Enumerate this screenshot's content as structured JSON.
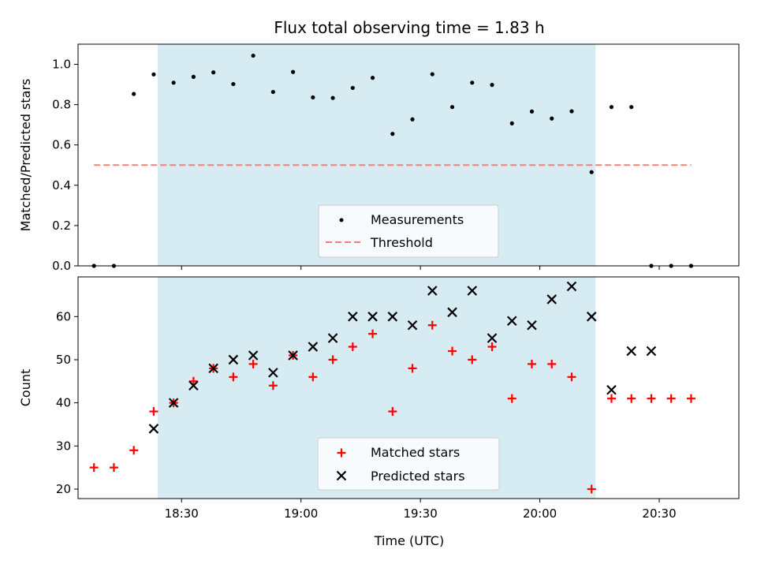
{
  "title": "Flux total observing time = 1.83 h",
  "colors": {
    "shade": "#add8e6",
    "threshold": "#f08080",
    "measurement": "#000000",
    "matched": "#ff0000",
    "predicted": "#000000"
  },
  "chart_data": [
    {
      "type": "scatter",
      "name": "ratio-panel",
      "ylabel": "Matched/Predicted stars",
      "xlabel": "",
      "ylim": [
        0.0,
        1.1
      ],
      "yticks": [
        0.0,
        0.2,
        0.4,
        0.6,
        0.8,
        1.0
      ],
      "ytick_labels": [
        "0.0",
        "0.2",
        "0.4",
        "0.6",
        "0.8",
        "1.0"
      ],
      "xlim_min": [
        1084,
        1250
      ],
      "shaded_span_min": [
        1104,
        1214
      ],
      "threshold": {
        "value": 0.5,
        "x_min": [
          1088,
          1238
        ]
      },
      "series": [
        {
          "name": "Measurements",
          "x_min": [
            1088,
            1093,
            1098,
            1103,
            1108,
            1113,
            1118,
            1123,
            1128,
            1133,
            1138,
            1143,
            1148,
            1153,
            1158,
            1163,
            1168,
            1173,
            1178,
            1183,
            1188,
            1193,
            1198,
            1203,
            1208,
            1213,
            1218,
            1223,
            1228,
            1233,
            1238
          ],
          "values": [
            0.0,
            0.0,
            0.853,
            0.95,
            0.909,
            0.938,
            0.96,
            0.902,
            1.043,
            0.863,
            0.962,
            0.836,
            0.833,
            0.883,
            0.933,
            0.655,
            0.727,
            0.951,
            0.788,
            0.909,
            0.898,
            0.707,
            0.766,
            0.731,
            0.767,
            0.465,
            0.788,
            0.788,
            0.0,
            0.0,
            0.0
          ]
        }
      ],
      "legend": {
        "entries": [
          "Measurements",
          "Threshold"
        ],
        "placement": "lower-center"
      }
    },
    {
      "type": "scatter",
      "name": "count-panel",
      "ylabel": "Count",
      "xlabel": "Time (UTC)",
      "ylim": [
        17.8,
        69.2
      ],
      "yticks": [
        20,
        30,
        40,
        50,
        60
      ],
      "ytick_labels": [
        "20",
        "30",
        "40",
        "50",
        "60"
      ],
      "xlim_min": [
        1084,
        1250
      ],
      "xticks_min": [
        1110,
        1140,
        1170,
        1200,
        1230
      ],
      "xtick_labels": [
        "18:30",
        "19:00",
        "19:30",
        "20:00",
        "20:30"
      ],
      "shaded_span_min": [
        1104,
        1214
      ],
      "series": [
        {
          "name": "Matched stars",
          "x_min": [
            1088,
            1093,
            1098,
            1103,
            1108,
            1113,
            1118,
            1123,
            1128,
            1133,
            1138,
            1143,
            1148,
            1153,
            1158,
            1163,
            1168,
            1173,
            1178,
            1183,
            1188,
            1193,
            1198,
            1203,
            1208,
            1213,
            1218,
            1223,
            1228,
            1233,
            1238
          ],
          "values": [
            25,
            25,
            29,
            38,
            40,
            45,
            48,
            46,
            49,
            44,
            51,
            46,
            50,
            53,
            56,
            38,
            48,
            58,
            52,
            50,
            53,
            41,
            49,
            49,
            46,
            20,
            41,
            41,
            41,
            41,
            41
          ]
        },
        {
          "name": "Predicted stars",
          "x_min": [
            1103,
            1108,
            1113,
            1118,
            1123,
            1128,
            1133,
            1138,
            1143,
            1148,
            1153,
            1158,
            1163,
            1168,
            1173,
            1178,
            1183,
            1188,
            1193,
            1198,
            1203,
            1208,
            1213,
            1218,
            1223,
            1228
          ],
          "values": [
            34,
            40,
            44,
            48,
            50,
            51,
            47,
            51,
            53,
            55,
            60,
            60,
            60,
            58,
            66,
            61,
            66,
            55,
            59,
            58,
            64,
            67,
            60,
            43,
            52,
            52
          ]
        }
      ],
      "legend": {
        "entries": [
          "Matched stars",
          "Predicted stars"
        ],
        "placement": "lower-center"
      }
    }
  ]
}
